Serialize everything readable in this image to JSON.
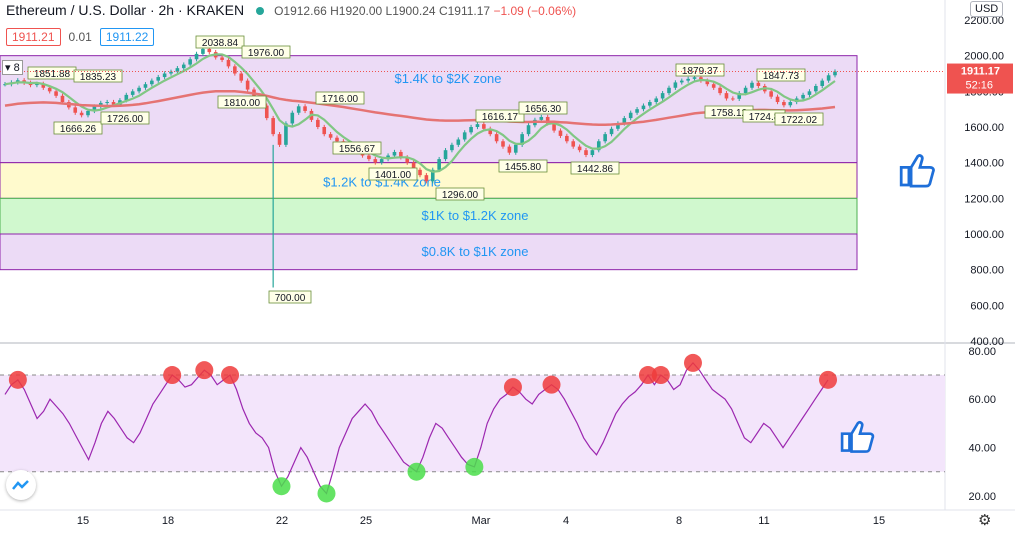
{
  "header": {
    "symbol": "Ethereum / U.S. Dollar · 2h · KRAKEN",
    "open": "O1912.66",
    "high": "H1920.00",
    "low": "L1900.24",
    "close": "C1911.17",
    "change": "−1.09 (−0.06%)",
    "bid": "1911.21",
    "spread": "0.01",
    "ask": "1911.22",
    "currency": "USD",
    "dropdown": "8",
    "price_tag": "1911.17",
    "countdown": "52:16"
  },
  "colors": {
    "up": "#26a69a",
    "down": "#ef5350",
    "ma_fast": "#81c784",
    "ma_slow": "#e57373",
    "zone_purple": "#e9d5f5",
    "zone_yellow": "#fff9c4",
    "zone_green": "#c8f7c5",
    "rsi_line": "#9c27b0",
    "zone_text": "#2196f3"
  },
  "chart_data": [
    {
      "type": "line",
      "title": "",
      "ylim": [
        400,
        2200
      ],
      "y_ticks": [
        "2200.00",
        "2000.00",
        "1800.00",
        "1600.00",
        "1400.00",
        "1200.00",
        "1000.00",
        "800.00",
        "600.00",
        "400.00"
      ],
      "x_ticks": [
        "15",
        "18",
        "22",
        "25",
        "Mar",
        "4",
        "8",
        "11",
        "15"
      ],
      "zones": [
        {
          "label": "$1.4K to $2K zone",
          "from": 1400,
          "to": 2000,
          "color": "#e9d5f5"
        },
        {
          "label": "$1.2K to $1.4K zone",
          "from": 1200,
          "to": 1400,
          "color": "#fff9c4"
        },
        {
          "label": "$1K to $1.2K zone",
          "from": 1000,
          "to": 1200,
          "color": "#c8f7c5"
        },
        {
          "label": "$0.8K to $1K zone",
          "from": 800,
          "to": 1000,
          "color": "#e9d5f5"
        }
      ],
      "series": [
        {
          "values": [
            1840,
            1850,
            1862,
            1848,
            1835,
            1842,
            1820,
            1800,
            1775,
            1740,
            1710,
            1680,
            1666,
            1690,
            1715,
            1735,
            1740,
            1726,
            1750,
            1780,
            1800,
            1820,
            1840,
            1860,
            1880,
            1900,
            1910,
            1930,
            1950,
            1980,
            2010,
            2038,
            2020,
            1990,
            1976,
            1940,
            1900,
            1860,
            1810,
            1760,
            1720,
            1650,
            1560,
            1500,
            1620,
            1680,
            1716,
            1690,
            1640,
            1600,
            1560,
            1540,
            1520,
            1500,
            1480,
            1460,
            1440,
            1420,
            1401,
            1420,
            1440,
            1460,
            1430,
            1400,
            1360,
            1330,
            1296,
            1360,
            1420,
            1470,
            1500,
            1530,
            1570,
            1600,
            1616,
            1590,
            1560,
            1520,
            1490,
            1456,
            1500,
            1560,
            1610,
            1640,
            1656,
            1620,
            1580,
            1550,
            1520,
            1490,
            1470,
            1443,
            1470,
            1520,
            1560,
            1590,
            1620,
            1650,
            1680,
            1700,
            1720,
            1740,
            1760,
            1790,
            1820,
            1850,
            1860,
            1870,
            1879,
            1860,
            1840,
            1820,
            1790,
            1760,
            1758,
            1790,
            1820,
            1848,
            1830,
            1800,
            1770,
            1740,
            1722,
            1740,
            1760,
            1780,
            1800,
            1830,
            1860,
            1890,
            1911
          ]
        },
        {
          "values": [
            1720,
            1725,
            1730,
            1733,
            1735,
            1737,
            1738,
            1737,
            1735,
            1732,
            1729,
            1726,
            1723,
            1721,
            1720,
            1719,
            1718,
            1718,
            1719,
            1721,
            1724,
            1728,
            1733,
            1739,
            1745,
            1752,
            1759,
            1766,
            1773,
            1780,
            1787,
            1793,
            1797,
            1800,
            1801,
            1801,
            1800,
            1797,
            1793,
            1788,
            1782,
            1775,
            1766,
            1758,
            1752,
            1747,
            1744,
            1740,
            1736,
            1732,
            1727,
            1722,
            1717,
            1712,
            1706,
            1700,
            1694,
            1688,
            1682,
            1677,
            1672,
            1667,
            1662,
            1657,
            1652,
            1647,
            1642,
            1639,
            1637,
            1636,
            1636,
            1636,
            1637,
            1638,
            1639,
            1639,
            1638,
            1636,
            1634,
            1631,
            1629,
            1628,
            1628,
            1629,
            1630,
            1630,
            1629,
            1627,
            1625,
            1622,
            1619,
            1616,
            1614,
            1613,
            1613,
            1614,
            1616,
            1619,
            1622,
            1626,
            1630,
            1635,
            1640,
            1646,
            1652,
            1658,
            1664,
            1670,
            1676,
            1680,
            1683,
            1686,
            1688,
            1689,
            1690,
            1691,
            1693,
            1695,
            1696,
            1696,
            1695,
            1694,
            1693,
            1693,
            1694,
            1696,
            1698,
            1701,
            1704,
            1708,
            1712
          ]
        }
      ],
      "annotations": [
        "1851.88",
        "1835.23",
        "1666.26",
        "1726.00",
        "2038.84",
        "1976.00",
        "1810.00",
        "1716.00",
        "1556.67",
        "1401.00",
        "1296.00",
        "1616.17",
        "1656.30",
        "1455.80",
        "1442.86",
        "1879.37",
        "1758.12",
        "1847.73",
        "1724.8",
        "1722.02",
        "700.00"
      ]
    },
    {
      "type": "line",
      "title": "",
      "ylim": [
        15,
        82
      ],
      "y_ticks": [
        "80.00",
        "60.00",
        "40.00",
        "20.00"
      ],
      "bands": [
        30,
        70
      ],
      "series": [
        {
          "values": [
            62,
            66,
            68,
            64,
            58,
            52,
            55,
            60,
            57,
            54,
            50,
            45,
            40,
            35,
            42,
            50,
            55,
            52,
            48,
            44,
            42,
            46,
            52,
            58,
            62,
            66,
            70,
            68,
            65,
            66,
            69,
            72,
            70,
            66,
            68,
            70,
            64,
            56,
            50,
            46,
            44,
            40,
            30,
            24,
            28,
            34,
            40,
            36,
            30,
            24,
            21,
            30,
            40,
            46,
            52,
            55,
            58,
            55,
            50,
            46,
            42,
            38,
            34,
            32,
            30,
            36,
            44,
            50,
            48,
            44,
            40,
            36,
            33,
            32,
            40,
            50,
            56,
            60,
            62,
            65,
            63,
            60,
            58,
            62,
            64,
            66,
            64,
            60,
            55,
            50,
            44,
            40,
            37,
            42,
            48,
            54,
            58,
            61,
            63,
            66,
            70,
            66,
            70,
            68,
            64,
            66,
            72,
            75,
            72,
            68,
            64,
            62,
            60,
            56,
            50,
            44,
            42,
            46,
            50,
            48,
            44,
            40,
            44,
            48,
            52,
            56,
            60,
            64,
            68
          ]
        }
      ]
    }
  ]
}
